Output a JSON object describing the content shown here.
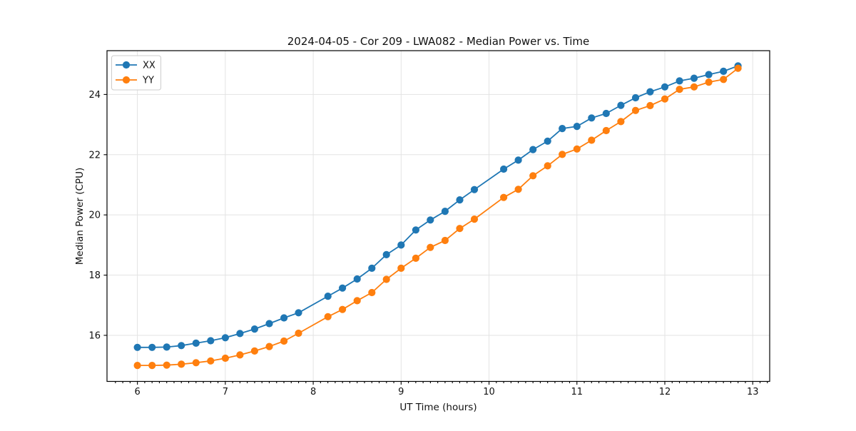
{
  "chart_data": {
    "type": "line",
    "title": "2024-04-05 - Cor 209 - LWA082 - Median Power vs. Time",
    "xlabel": "UT Time (hours)",
    "ylabel": "Median Power (CPU)",
    "xlim": [
      5.654,
      13.193
    ],
    "ylim": [
      14.47,
      25.455
    ],
    "x_ticks": [
      6,
      7,
      8,
      9,
      10,
      11,
      12,
      13
    ],
    "y_ticks": [
      16,
      18,
      20,
      22,
      24
    ],
    "x_minor_tick_step_hours": 0.0833,
    "grid": true,
    "legend_position": "upper left",
    "background_color": "#ffffff",
    "grid_color": "#e3e3e3",
    "x": [
      6.0,
      6.167,
      6.333,
      6.5,
      6.667,
      6.833,
      7.0,
      7.167,
      7.333,
      7.5,
      7.667,
      7.833,
      8.167,
      8.333,
      8.5,
      8.667,
      8.833,
      9.0,
      9.167,
      9.333,
      9.5,
      9.667,
      9.833,
      10.167,
      10.333,
      10.5,
      10.667,
      10.833,
      11.0,
      11.167,
      11.333,
      11.5,
      11.667,
      11.833,
      12.0,
      12.167,
      12.333,
      12.5,
      12.667,
      12.833
    ],
    "series": [
      {
        "name": "XX",
        "color": "#1f77b4",
        "values": [
          15.6,
          15.6,
          15.61,
          15.66,
          15.74,
          15.82,
          15.92,
          16.06,
          16.21,
          16.39,
          16.58,
          16.75,
          17.3,
          17.57,
          17.87,
          18.23,
          18.68,
          19.0,
          19.5,
          19.83,
          20.12,
          20.5,
          20.84,
          21.52,
          21.82,
          22.17,
          22.45,
          22.87,
          22.94,
          23.22,
          23.37,
          23.64,
          23.89,
          24.09,
          24.25,
          24.45,
          24.54,
          24.66,
          24.77,
          24.95
        ]
      },
      {
        "name": "YY",
        "color": "#ff7f0e",
        "values": [
          15.0,
          15.0,
          15.01,
          15.04,
          15.09,
          15.15,
          15.24,
          15.35,
          15.48,
          15.63,
          15.81,
          16.07,
          16.62,
          16.86,
          17.15,
          17.42,
          17.86,
          18.23,
          18.56,
          18.92,
          19.15,
          19.55,
          19.86,
          20.58,
          20.85,
          21.3,
          21.63,
          22.01,
          22.19,
          22.48,
          22.8,
          23.1,
          23.47,
          23.63,
          23.85,
          24.17,
          24.25,
          24.41,
          24.5,
          24.87
        ]
      }
    ]
  }
}
